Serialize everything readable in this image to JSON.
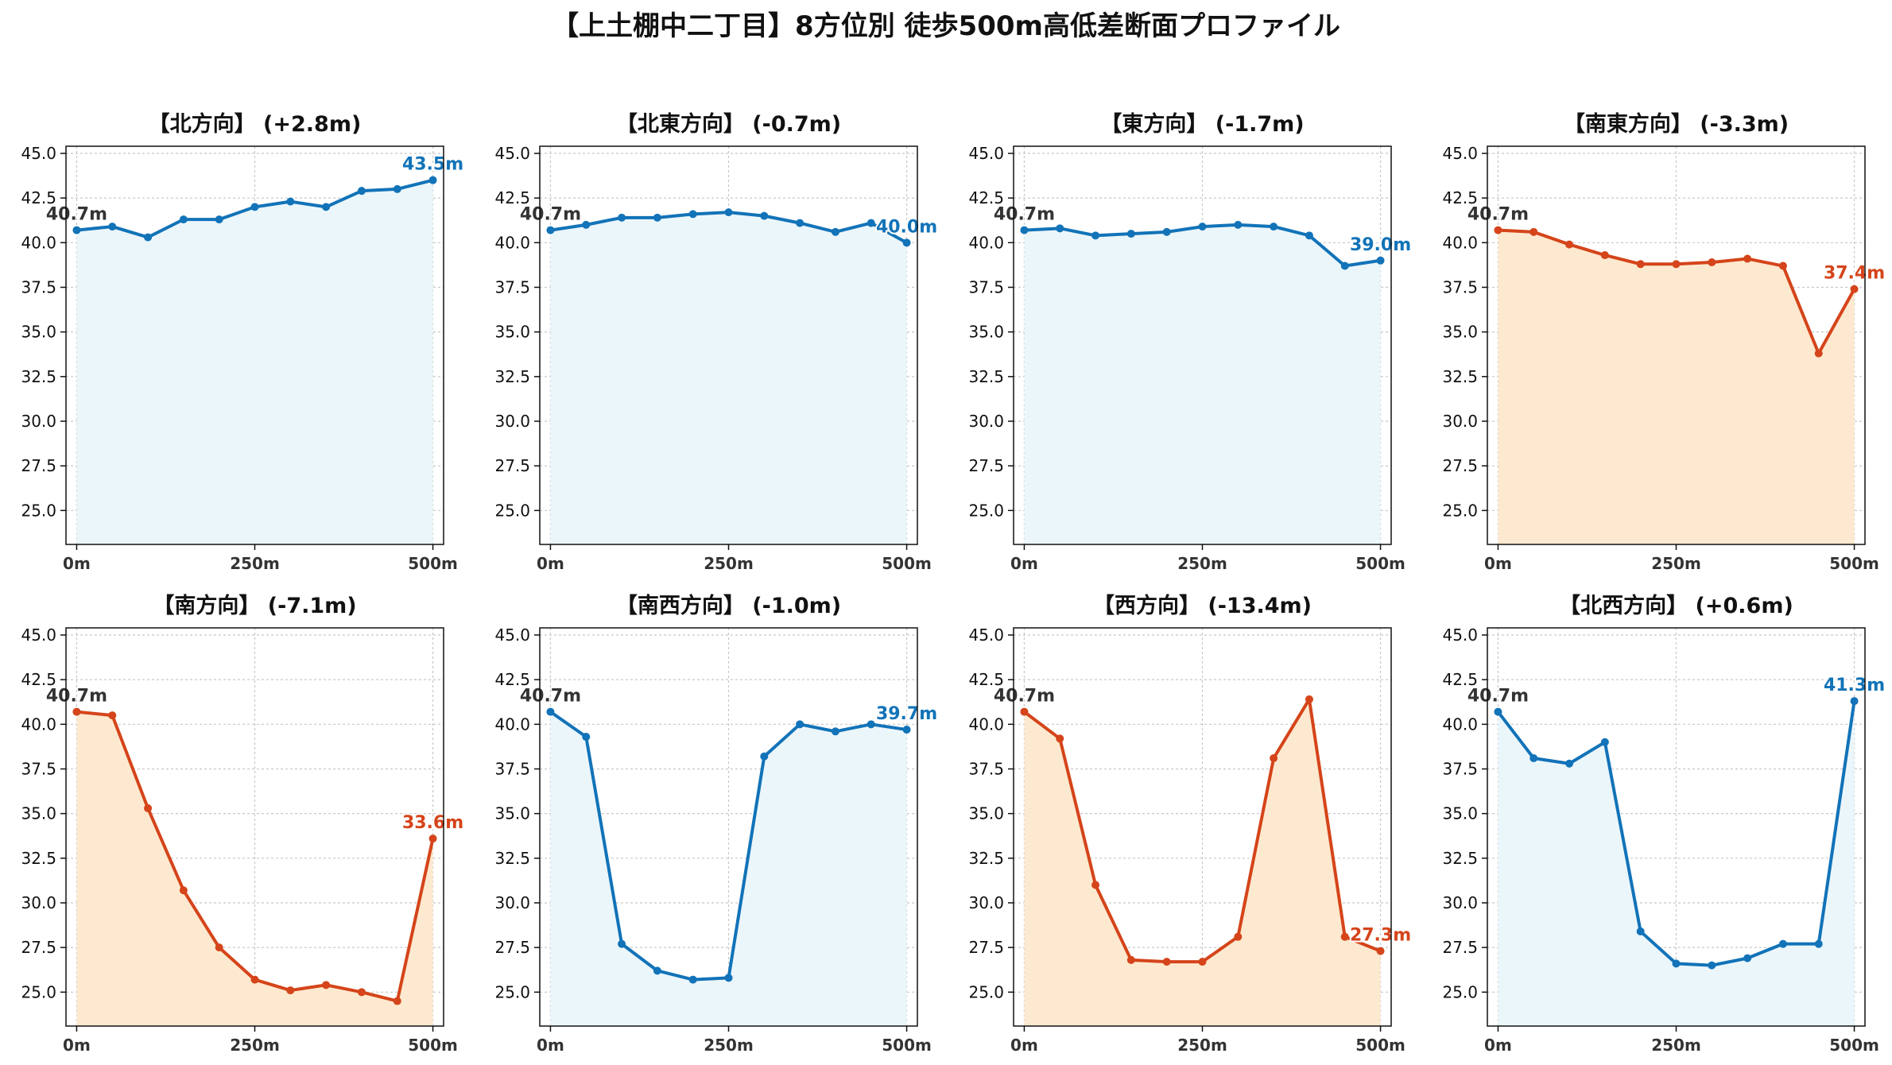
{
  "title": "【上土棚中二丁目】8方位別 徒歩500m高低差断面プロファイル",
  "colors": {
    "up": "#1273b8",
    "up_fill": "#ebf6fb",
    "down": "#d5441a",
    "down_fill": "#fde9cf",
    "start_label": "#333333"
  },
  "chart_data": [
    {
      "type": "line",
      "title": "【北方向】 (+2.8m)",
      "trend": "up",
      "x": [
        0,
        50,
        100,
        150,
        200,
        250,
        300,
        350,
        400,
        450,
        500
      ],
      "y": [
        40.7,
        40.9,
        40.3,
        41.3,
        41.3,
        42.0,
        42.3,
        42.0,
        42.9,
        43.0,
        43.5
      ],
      "start_label": "40.7m",
      "end_label": "43.5m",
      "xticks": [
        "0m",
        "250m",
        "500m"
      ],
      "yticks": [
        "25.0",
        "27.5",
        "30.0",
        "32.5",
        "35.0",
        "37.5",
        "40.0",
        "42.5",
        "45.0"
      ],
      "ylim": [
        23.1,
        45.4
      ],
      "xlim": [
        -15,
        515
      ],
      "grid": true
    },
    {
      "type": "line",
      "title": "【北東方向】 (-0.7m)",
      "trend": "up",
      "x": [
        0,
        50,
        100,
        150,
        200,
        250,
        300,
        350,
        400,
        450,
        500
      ],
      "y": [
        40.7,
        41.0,
        41.4,
        41.4,
        41.6,
        41.7,
        41.5,
        41.1,
        40.6,
        41.1,
        40.0
      ],
      "start_label": "40.7m",
      "end_label": "40.0m",
      "xticks": [
        "0m",
        "250m",
        "500m"
      ],
      "yticks": [
        "25.0",
        "27.5",
        "30.0",
        "32.5",
        "35.0",
        "37.5",
        "40.0",
        "42.5",
        "45.0"
      ],
      "ylim": [
        23.1,
        45.4
      ],
      "xlim": [
        -15,
        515
      ],
      "grid": true
    },
    {
      "type": "line",
      "title": "【東方向】 (-1.7m)",
      "trend": "up",
      "x": [
        0,
        50,
        100,
        150,
        200,
        250,
        300,
        350,
        400,
        450,
        500
      ],
      "y": [
        40.7,
        40.8,
        40.4,
        40.5,
        40.6,
        40.9,
        41.0,
        40.9,
        40.4,
        38.7,
        39.0
      ],
      "start_label": "40.7m",
      "end_label": "39.0m",
      "xticks": [
        "0m",
        "250m",
        "500m"
      ],
      "yticks": [
        "25.0",
        "27.5",
        "30.0",
        "32.5",
        "35.0",
        "37.5",
        "40.0",
        "42.5",
        "45.0"
      ],
      "ylim": [
        23.1,
        45.4
      ],
      "xlim": [
        -15,
        515
      ],
      "grid": true
    },
    {
      "type": "line",
      "title": "【南東方向】 (-3.3m)",
      "trend": "down",
      "x": [
        0,
        50,
        100,
        150,
        200,
        250,
        300,
        350,
        400,
        450,
        500
      ],
      "y": [
        40.7,
        40.6,
        39.9,
        39.3,
        38.8,
        38.8,
        38.9,
        39.1,
        38.7,
        33.8,
        37.4
      ],
      "start_label": "40.7m",
      "end_label": "37.4m",
      "xticks": [
        "0m",
        "250m",
        "500m"
      ],
      "yticks": [
        "25.0",
        "27.5",
        "30.0",
        "32.5",
        "35.0",
        "37.5",
        "40.0",
        "42.5",
        "45.0"
      ],
      "ylim": [
        23.1,
        45.4
      ],
      "xlim": [
        -15,
        515
      ],
      "grid": true
    },
    {
      "type": "line",
      "title": "【南方向】 (-7.1m)",
      "trend": "down",
      "x": [
        0,
        50,
        100,
        150,
        200,
        250,
        300,
        350,
        400,
        450,
        500
      ],
      "y": [
        40.7,
        40.5,
        35.3,
        30.7,
        27.5,
        25.7,
        25.1,
        25.4,
        25.0,
        24.5,
        33.6
      ],
      "start_label": "40.7m",
      "end_label": "33.6m",
      "xticks": [
        "0m",
        "250m",
        "500m"
      ],
      "yticks": [
        "25.0",
        "27.5",
        "30.0",
        "32.5",
        "35.0",
        "37.5",
        "40.0",
        "42.5",
        "45.0"
      ],
      "ylim": [
        23.1,
        45.4
      ],
      "xlim": [
        -15,
        515
      ],
      "grid": true
    },
    {
      "type": "line",
      "title": "【南西方向】 (-1.0m)",
      "trend": "up",
      "x": [
        0,
        50,
        100,
        150,
        200,
        250,
        300,
        350,
        400,
        450,
        500
      ],
      "y": [
        40.7,
        39.3,
        27.7,
        26.2,
        25.7,
        25.8,
        38.2,
        40.0,
        39.6,
        40.0,
        39.7
      ],
      "start_label": "40.7m",
      "end_label": "39.7m",
      "xticks": [
        "0m",
        "250m",
        "500m"
      ],
      "yticks": [
        "25.0",
        "27.5",
        "30.0",
        "32.5",
        "35.0",
        "37.5",
        "40.0",
        "42.5",
        "45.0"
      ],
      "ylim": [
        23.1,
        45.4
      ],
      "xlim": [
        -15,
        515
      ],
      "grid": true
    },
    {
      "type": "line",
      "title": "【西方向】 (-13.4m)",
      "trend": "down",
      "x": [
        0,
        50,
        100,
        150,
        200,
        250,
        300,
        350,
        400,
        450,
        500
      ],
      "y": [
        40.7,
        39.2,
        31.0,
        26.8,
        26.7,
        26.7,
        28.1,
        38.1,
        41.4,
        28.1,
        27.3
      ],
      "start_label": "40.7m",
      "end_label": "27.3m",
      "xticks": [
        "0m",
        "250m",
        "500m"
      ],
      "yticks": [
        "25.0",
        "27.5",
        "30.0",
        "32.5",
        "35.0",
        "37.5",
        "40.0",
        "42.5",
        "45.0"
      ],
      "ylim": [
        23.1,
        45.4
      ],
      "xlim": [
        -15,
        515
      ],
      "grid": true
    },
    {
      "type": "line",
      "title": "【北西方向】 (+0.6m)",
      "trend": "up",
      "x": [
        0,
        50,
        100,
        150,
        200,
        250,
        300,
        350,
        400,
        450,
        500
      ],
      "y": [
        40.7,
        38.1,
        37.8,
        39.0,
        28.4,
        26.6,
        26.5,
        26.9,
        27.7,
        27.7,
        41.3
      ],
      "start_label": "40.7m",
      "end_label": "41.3m",
      "xticks": [
        "0m",
        "250m",
        "500m"
      ],
      "yticks": [
        "25.0",
        "27.5",
        "30.0",
        "32.5",
        "35.0",
        "37.5",
        "40.0",
        "42.5",
        "45.0"
      ],
      "ylim": [
        23.1,
        45.4
      ],
      "xlim": [
        -15,
        515
      ],
      "grid": true
    }
  ]
}
